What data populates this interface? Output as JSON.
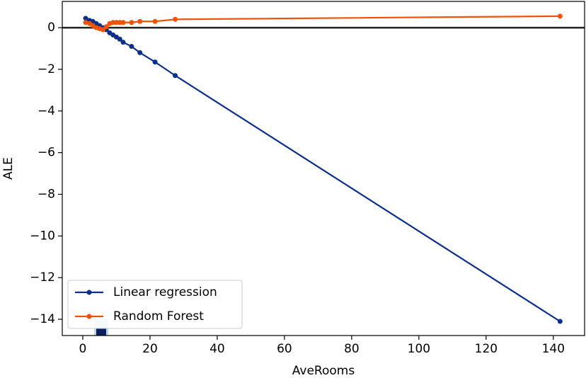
{
  "chart_data": {
    "type": "line",
    "x_label": "AveRooms",
    "y_label": "ALE",
    "xlim": [
      -6.1,
      149.3
    ],
    "ylim": [
      -14.78,
      1.26
    ],
    "xticks": [
      0,
      20,
      40,
      60,
      80,
      100,
      120,
      140
    ],
    "yticks": [
      0,
      {
        "value": -2,
        "label": "−2"
      },
      {
        "value": -4,
        "label": "−4"
      },
      {
        "value": -6,
        "label": "−6"
      },
      {
        "value": -8,
        "label": "−8"
      },
      {
        "value": -10,
        "label": "−10"
      },
      {
        "value": -12,
        "label": "−12"
      },
      {
        "value": -14,
        "label": "−14"
      }
    ],
    "zero_line": true,
    "legend": "lower left",
    "series": [
      {
        "name": "Linear regression",
        "color": "#0b2f8a",
        "x": [
          0.85,
          2,
          3,
          4,
          5,
          6,
          7,
          8,
          9,
          10,
          11,
          12,
          14.5,
          17,
          21.5,
          27.5,
          142
        ],
        "values": [
          0.45,
          0.35,
          0.3,
          0.2,
          0.1,
          0.0,
          -0.1,
          -0.25,
          -0.35,
          -0.45,
          -0.55,
          -0.7,
          -0.9,
          -1.2,
          -1.65,
          -2.3,
          -14.1
        ]
      },
      {
        "name": "Random Forest",
        "color": "#f0520a",
        "x": [
          0.85,
          2,
          3,
          4,
          5,
          6,
          7,
          8,
          9,
          10,
          11,
          12,
          14.5,
          17,
          21.5,
          27.5,
          142
        ],
        "values": [
          0.25,
          0.2,
          0.1,
          0.0,
          -0.05,
          -0.1,
          0.05,
          0.2,
          0.25,
          0.25,
          0.25,
          0.25,
          0.25,
          0.3,
          0.3,
          0.4,
          0.55
        ]
      }
    ]
  }
}
